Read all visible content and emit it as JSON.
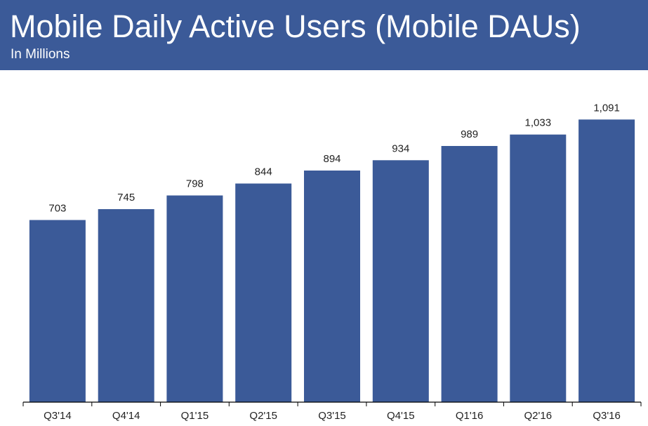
{
  "header": {
    "title": "Mobile Daily Active Users (Mobile DAUs)",
    "subtitle": "In Millions"
  },
  "colors": {
    "header_bg": "#3b5a98",
    "bar": "#3b5a98",
    "text": "#222222",
    "axis": "#000000"
  },
  "chart_data": {
    "type": "bar",
    "title": "Mobile Daily Active Users (Mobile DAUs)",
    "subtitle": "In Millions",
    "xlabel": "",
    "ylabel": "",
    "categories": [
      "Q3'14",
      "Q4'14",
      "Q1'15",
      "Q2'15",
      "Q3'15",
      "Q4'15",
      "Q1'16",
      "Q2'16",
      "Q3'16"
    ],
    "values": [
      703,
      745,
      798,
      844,
      894,
      934,
      989,
      1033,
      1091
    ],
    "data_labels": [
      "703",
      "745",
      "798",
      "844",
      "894",
      "934",
      "989",
      "1,033",
      "1,091"
    ],
    "ylim": [
      0,
      1100
    ],
    "grid": false,
    "legend": "none"
  }
}
